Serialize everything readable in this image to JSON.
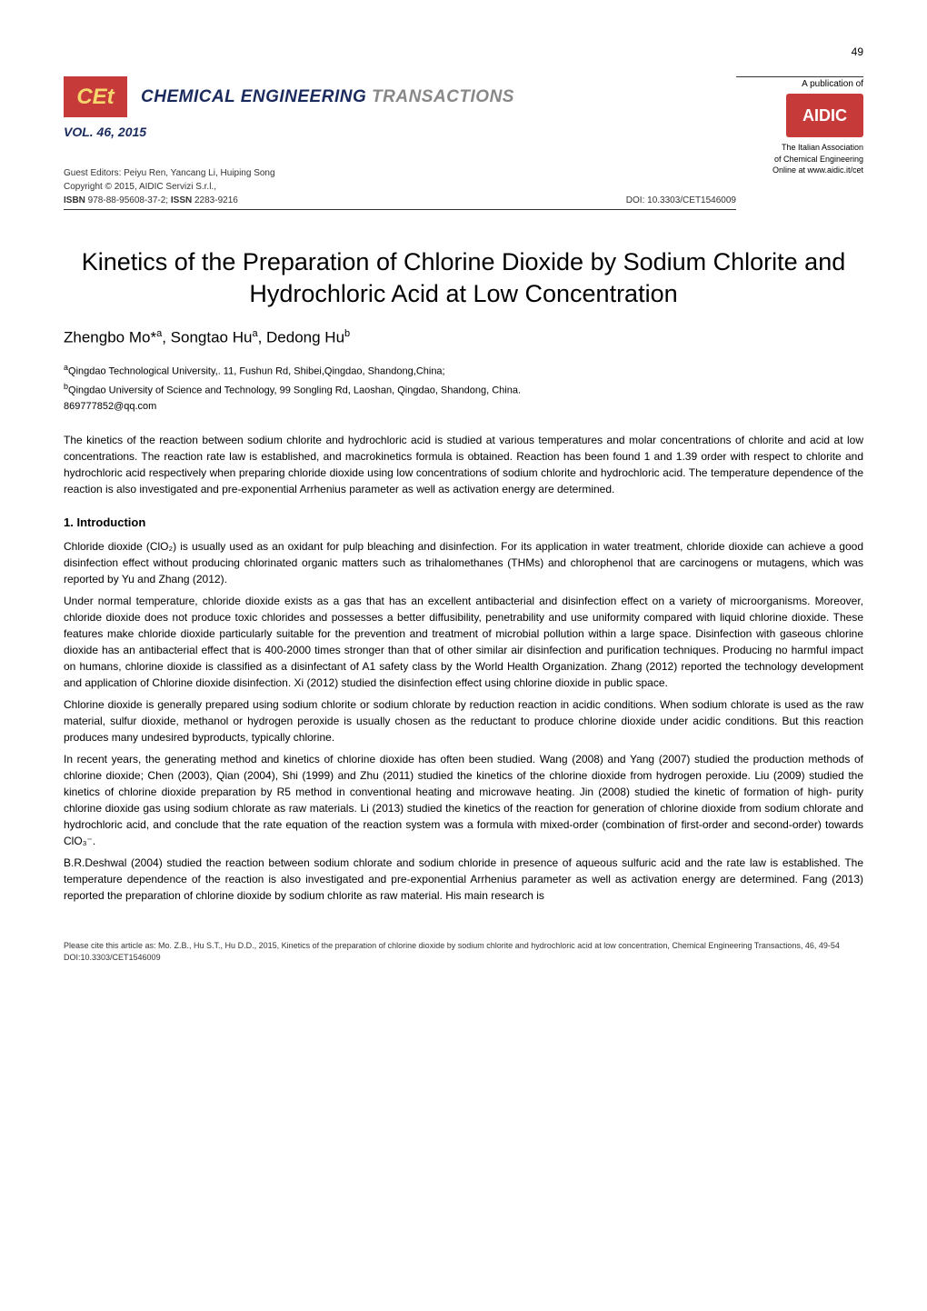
{
  "page_number": "49",
  "cet_logo_text": "CEt",
  "journal_title_navy": "CHEMICAL ENGINEERING",
  "journal_title_gray": "TRANSACTIONS",
  "vol_line": "VOL. 46, 2015",
  "editors_line": "Guest Editors: Peiyu Ren, Yancang Li, Huiping Song",
  "copyright_line": "Copyright © 2015, AIDIC Servizi S.r.l.,",
  "isbn_issn_line": "ISBN 978-88-95608-37-2; ISSN 2283-9216",
  "doi_line": "DOI: 10.3303/CET1546009",
  "pub_of": "A publication of",
  "aidic_logo_text": "AIDIC",
  "assoc_line_1": "The Italian Association",
  "assoc_line_2": "of Chemical Engineering",
  "assoc_line_3": "Online at www.aidic.it/cet",
  "article_title": "Kinetics of the Preparation of Chlorine Dioxide by Sodium Chlorite and Hydrochloric Acid at Low Concentration",
  "authors_html": "Zhengbo Mo*<sup>a</sup>, Songtao Hu<sup>a</sup>, Dedong Hu<sup>b</sup>",
  "affiliation_a": "Qingdao Technological University,. 11, Fushun Rd,  Shibei,Qingdao, Shandong,China;",
  "affiliation_b": "Qingdao University of Science and Technology, 99 Songling Rd, Laoshan, Qingdao, Shandong, China.",
  "email": "869777852@qq.com",
  "abstract_text": "The kinetics of the reaction between sodium chlorite and hydrochloric acid is studied at various temperatures and molar concentrations of chlorite and acid at low concentrations. The reaction rate law is established, and macrokinetics formula is obtained. Reaction has been found 1 and 1.39 order with respect to chlorite and hydrochloric acid respectively when preparing chloride dioxide using low concentrations of sodium chlorite and hydrochloric acid. The temperature dependence of the reaction is also investigated and pre-exponential Arrhenius parameter as well as activation energy are determined.",
  "section_1_heading": "1. Introduction",
  "para_1": "Chloride dioxide (ClO₂) is usually used as an oxidant for pulp bleaching and disinfection. For its application in water treatment, chloride dioxide can achieve a good disinfection effect without producing chlorinated organic matters such as trihalomethanes (THMs) and chlorophenol that are carcinogens or mutagens, which was reported by Yu and Zhang (2012).",
  "para_2": "Under normal temperature, chloride dioxide exists as a gas that has an excellent antibacterial and disinfection effect on a variety of microorganisms. Moreover, chloride dioxide does not produce toxic chlorides and possesses a better diffusibility, penetrability and use uniformity compared with liquid chlorine dioxide. These features make chloride dioxide particularly suitable for the prevention and treatment of microbial pollution within a large space. Disinfection with gaseous chlorine dioxide has an antibacterial effect that is 400-2000 times stronger than that of other similar air disinfection and purification techniques. Producing no harmful impact on humans, chlorine dioxide is classified as a disinfectant of A1 safety class by the World Health Organization. Zhang (2012) reported the technology development and application of Chlorine dioxide disinfection. Xi (2012) studied the disinfection effect using chlorine dioxide in public space.",
  "para_3": "Chlorine dioxide is generally prepared using sodium chlorite or sodium chlorate by reduction reaction in acidic conditions. When sodium chlorate is used as the raw material, sulfur dioxide, methanol or hydrogen peroxide is usually chosen as the reductant to produce chlorine dioxide under acidic conditions. But this reaction produces many undesired byproducts, typically chlorine.",
  "para_4": "In recent years, the generating method and kinetics of chlorine dioxide has often been studied. Wang (2008) and Yang (2007) studied the production methods of chlorine dioxide; Chen (2003), Qian (2004), Shi (1999) and Zhu (2011) studied the kinetics of the chlorine dioxide from hydrogen peroxide. Liu (2009) studied the kinetics of chlorine dioxide preparation by R5 method in conventional heating and microwave heating.  Jin (2008) studied the kinetic of formation of high- purity chlorine dioxide gas using sodium chlorate as raw materials. Li (2013) studied the kinetics of the reaction for generation of chlorine dioxide from sodium chlorate and hydrochloric acid, and conclude that the rate equation of the reaction system was a formula with mixed-order (combination of first-order and second-order) towards ClO₃⁻.",
  "para_5": "B.R.Deshwal (2004) studied the reaction between sodium chlorate and sodium chloride in presence of aqueous sulfuric acid and the rate law is established. The temperature dependence of the reaction is also investigated and pre-exponential Arrhenius parameter as well as activation energy are determined. Fang (2013) reported the preparation of chlorine dioxide by sodium chlorite as raw material. His main research is",
  "citation_footer": "Please cite this article as: Mo. Z.B., Hu S.T., Hu D.D., 2015, Kinetics of the preparation of chlorine dioxide by sodium chlorite and hydrochloric acid at low concentration, Chemical Engineering Transactions, 46, 49-54  DOI:10.3303/CET1546009",
  "colors": {
    "red_logo_bg": "#c73a3a",
    "cet_yellow": "#f5d76e",
    "navy": "#1a2a5c",
    "gray_text": "#888888",
    "body_text": "#000000"
  }
}
